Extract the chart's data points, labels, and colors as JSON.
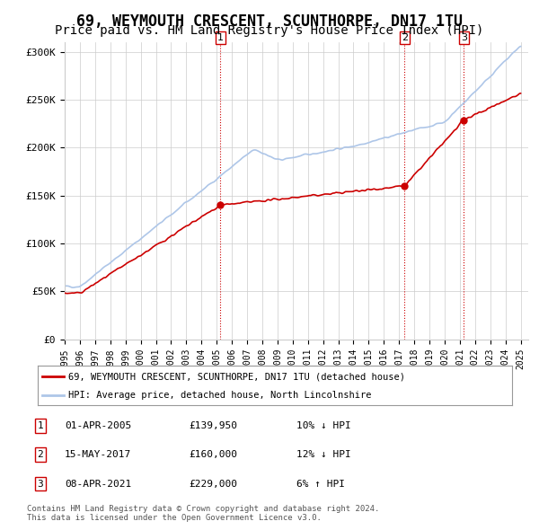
{
  "title": "69, WEYMOUTH CRESCENT, SCUNTHORPE, DN17 1TU",
  "subtitle": "Price paid vs. HM Land Registry's House Price Index (HPI)",
  "title_fontsize": 12,
  "subtitle_fontsize": 10,
  "background_color": "#ffffff",
  "plot_background": "#ffffff",
  "grid_color": "#cccccc",
  "hpi_color": "#aec6e8",
  "price_color": "#cc0000",
  "sale_marker_color": "#cc0000",
  "annotation_color": "#cc0000",
  "sales": [
    {
      "date_num": 2005.25,
      "price": 139950,
      "label": "1"
    },
    {
      "date_num": 2017.37,
      "price": 160000,
      "label": "2"
    },
    {
      "date_num": 2021.27,
      "price": 229000,
      "label": "3"
    }
  ],
  "table_rows": [
    {
      "num": "1",
      "date": "01-APR-2005",
      "price": "£139,950",
      "pct": "10% ↓ HPI"
    },
    {
      "num": "2",
      "date": "15-MAY-2017",
      "price": "£160,000",
      "pct": "12% ↓ HPI"
    },
    {
      "num": "3",
      "date": "08-APR-2021",
      "price": "£229,000",
      "pct": "6% ↑ HPI"
    }
  ],
  "legend_entries": [
    "69, WEYMOUTH CRESCENT, SCUNTHORPE, DN17 1TU (detached house)",
    "HPI: Average price, detached house, North Lincolnshire"
  ],
  "footer": "Contains HM Land Registry data © Crown copyright and database right 2024.\nThis data is licensed under the Open Government Licence v3.0.",
  "ylim": [
    0,
    310000
  ],
  "yticks": [
    0,
    50000,
    100000,
    150000,
    200000,
    250000,
    300000
  ],
  "ytick_labels": [
    "£0",
    "£50K",
    "£100K",
    "£150K",
    "£200K",
    "£250K",
    "£300K"
  ],
  "xmin": 1995,
  "xmax": 2025.5
}
